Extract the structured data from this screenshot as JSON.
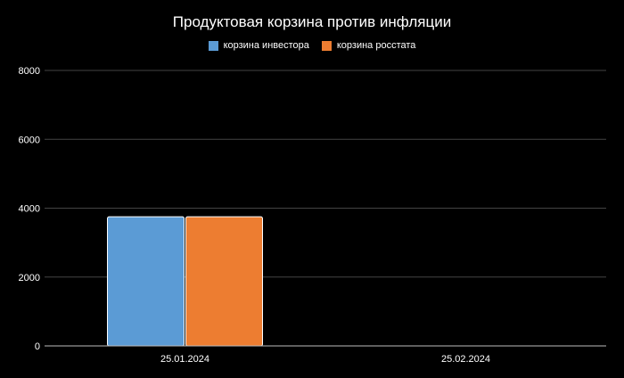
{
  "chart_data": {
    "type": "bar",
    "title": "Продуктовая корзина против инфляции",
    "categories": [
      "25.01.2024",
      "25.02.2024"
    ],
    "series": [
      {
        "name": "корзина инвестора",
        "color": "#5b9bd5",
        "values": [
          3750,
          0
        ]
      },
      {
        "name": "корзина росстата",
        "color": "#ed7d31",
        "values": [
          3750,
          0
        ]
      }
    ],
    "xlabel": "",
    "ylabel": "",
    "ylim": [
      0,
      8000
    ],
    "yticks": [
      0,
      2000,
      4000,
      6000,
      8000
    ],
    "grid": true,
    "legend_position": "top"
  },
  "colors": {
    "background": "#000000",
    "text": "#ffffff",
    "gridline": "#444444",
    "axis": "#bbbbbb"
  }
}
